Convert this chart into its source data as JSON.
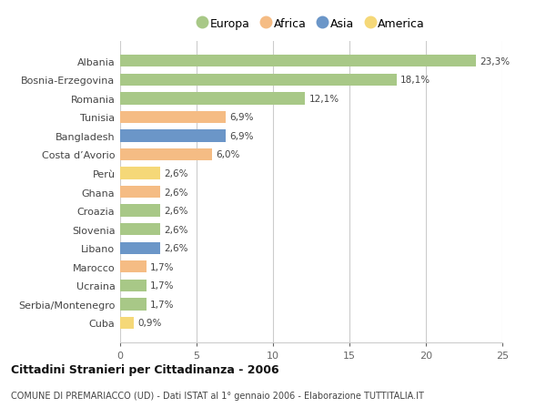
{
  "countries": [
    "Albania",
    "Bosnia-Erzegovina",
    "Romania",
    "Tunisia",
    "Bangladesh",
    "Costa d’Avorio",
    "Perù",
    "Ghana",
    "Croazia",
    "Slovenia",
    "Libano",
    "Marocco",
    "Ucraina",
    "Serbia/Montenegro",
    "Cuba"
  ],
  "values": [
    23.3,
    18.1,
    12.1,
    6.9,
    6.9,
    6.0,
    2.6,
    2.6,
    2.6,
    2.6,
    2.6,
    1.7,
    1.7,
    1.7,
    0.9
  ],
  "labels": [
    "23,3%",
    "18,1%",
    "12,1%",
    "6,9%",
    "6,9%",
    "6,0%",
    "2,6%",
    "2,6%",
    "2,6%",
    "2,6%",
    "2,6%",
    "1,7%",
    "1,7%",
    "1,7%",
    "0,9%"
  ],
  "colors": [
    "#a8c887",
    "#a8c887",
    "#a8c887",
    "#f5bc84",
    "#6b96c8",
    "#f5bc84",
    "#f5d878",
    "#f5bc84",
    "#a8c887",
    "#a8c887",
    "#6b96c8",
    "#f5bc84",
    "#a8c887",
    "#a8c887",
    "#f5d878"
  ],
  "legend_labels": [
    "Europa",
    "Africa",
    "Asia",
    "America"
  ],
  "legend_colors": [
    "#a8c887",
    "#f5bc84",
    "#6b96c8",
    "#f5d878"
  ],
  "title": "Cittadini Stranieri per Cittadinanza - 2006",
  "subtitle": "COMUNE DI PREMARIACCO (UD) - Dati ISTAT al 1° gennaio 2006 - Elaborazione TUTTITALIA.IT",
  "xlim": [
    0,
    25
  ],
  "xticks": [
    0,
    5,
    10,
    15,
    20,
    25
  ],
  "bg_color": "#ffffff",
  "plot_bg_color": "#ffffff",
  "grid_color": "#cccccc",
  "bar_height": 0.65
}
